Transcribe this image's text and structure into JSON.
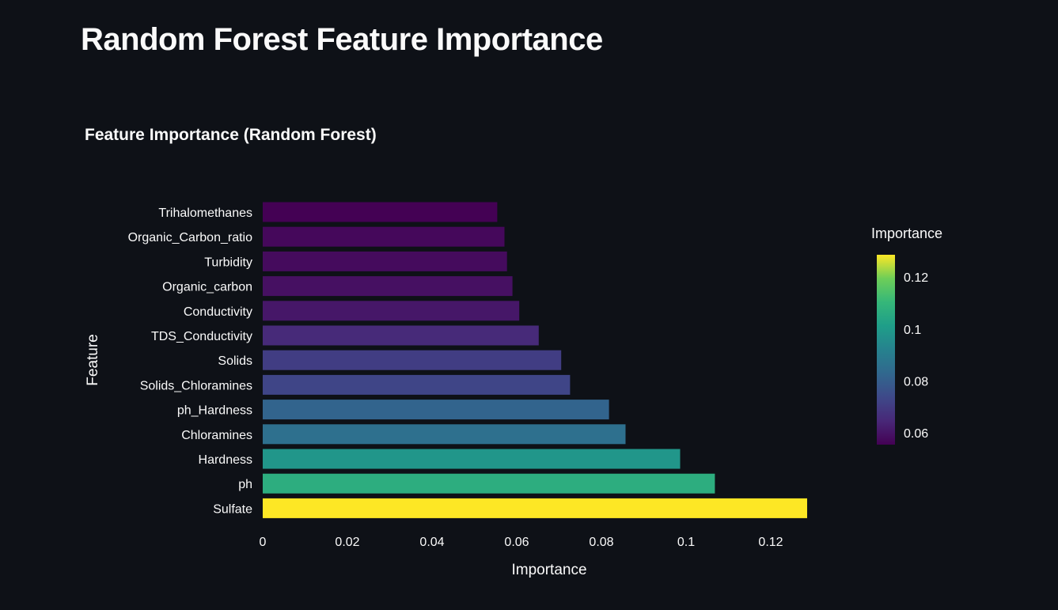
{
  "page": {
    "title": "Random Forest Feature Importance"
  },
  "chart_data": {
    "type": "bar",
    "orientation": "horizontal",
    "title": "Feature Importance (Random Forest)",
    "xlabel": "Importance",
    "ylabel": "Feature",
    "xlim": [
      0,
      0.135
    ],
    "xticks": [
      0,
      0.02,
      0.04,
      0.06,
      0.08,
      0.1,
      0.12
    ],
    "xtick_labels": [
      "0",
      "0.02",
      "0.04",
      "0.06",
      "0.08",
      "0.1",
      "0.12"
    ],
    "grid": false,
    "legend": "none",
    "categories": [
      "Trihalomethanes",
      "Organic_Carbon_ratio",
      "Turbidity",
      "Organic_carbon",
      "Conductivity",
      "TDS_Conductivity",
      "Solids",
      "Solids_Chloramines",
      "ph_Hardness",
      "Chloramines",
      "Hardness",
      "ph",
      "Sulfate"
    ],
    "values": [
      0.0554,
      0.0571,
      0.0577,
      0.059,
      0.0606,
      0.0652,
      0.0705,
      0.0726,
      0.0818,
      0.0857,
      0.0986,
      0.1068,
      0.1286
    ],
    "colorscale": "viridis",
    "colorbar": {
      "title": "Importance",
      "range": [
        0.0554,
        0.1286
      ],
      "ticks": [
        0.06,
        0.08,
        0.1,
        0.12
      ],
      "tick_labels": [
        "0.06",
        "0.08",
        "0.1",
        "0.12"
      ]
    }
  },
  "colors": {
    "background": "#0e1117",
    "text": "#fafafa"
  }
}
